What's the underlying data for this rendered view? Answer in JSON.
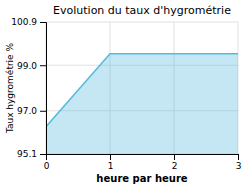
{
  "chart_data": {
    "type": "area",
    "title": "Evolution du taux d'hygrométrie",
    "xlabel": "heure par heure",
    "ylabel": "Taux hygrométrie %",
    "x": [
      0,
      1,
      2,
      3
    ],
    "values": [
      96.3,
      99.5,
      99.5,
      99.5
    ],
    "color": "#55bbdd",
    "xlim": [
      0,
      3
    ],
    "ylim": [
      95.1,
      100.9
    ],
    "xticks": [
      0,
      1,
      2,
      3
    ],
    "yticks": [
      95.1,
      {
        "value": 97.0,
        "label": "97.0"
      },
      {
        "value": 99.0,
        "label": "99.0"
      },
      100.9
    ],
    "grid": true
  }
}
